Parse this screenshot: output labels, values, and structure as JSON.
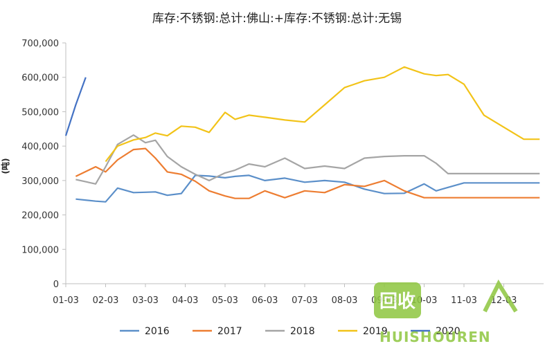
{
  "chart_data": {
    "type": "line",
    "title": "库存:不锈钢:总计:佛山:+库存:不锈钢:总计:无锡",
    "ylabel": "(吨)",
    "xlabel": "",
    "ylim": [
      0,
      700000
    ],
    "yticks": [
      0,
      100000,
      200000,
      300000,
      400000,
      500000,
      600000,
      700000
    ],
    "ytick_labels": [
      "0",
      "100,000",
      "200,000",
      "300,000",
      "400,000",
      "500,000",
      "600,000",
      "700,000"
    ],
    "categories": [
      "01-03",
      "02-03",
      "03-03",
      "04-03",
      "05-03",
      "06-03",
      "07-03",
      "08-03",
      "09-03",
      "10-03",
      "11-03",
      "12-03"
    ],
    "xlim": [
      0,
      12
    ],
    "grid": false,
    "legend_position": "bottom",
    "series": [
      {
        "name": "2016",
        "color": "#5b8fc9",
        "x": [
          0.25,
          0.75,
          1.0,
          1.3,
          1.7,
          2.0,
          2.25,
          2.55,
          2.9,
          3.25,
          3.6,
          4.0,
          4.25,
          4.6,
          5.0,
          5.5,
          6.0,
          6.5,
          7.0,
          7.5,
          8.0,
          8.5,
          9.0,
          9.3,
          9.6,
          10.0,
          10.5,
          11.0,
          11.5,
          11.9
        ],
        "y": [
          246000,
          240000,
          238000,
          278000,
          265000,
          266000,
          267000,
          257000,
          262000,
          315000,
          313000,
          308000,
          312000,
          315000,
          300000,
          307000,
          295000,
          300000,
          295000,
          275000,
          262000,
          263000,
          290000,
          270000,
          280000,
          293000,
          293000,
          293000,
          293000,
          293000
        ]
      },
      {
        "name": "2017",
        "color": "#ed7d31",
        "x": [
          0.25,
          0.75,
          1.0,
          1.3,
          1.7,
          2.0,
          2.25,
          2.55,
          2.9,
          3.25,
          3.6,
          4.0,
          4.25,
          4.6,
          5.0,
          5.5,
          6.0,
          6.5,
          7.0,
          7.5,
          8.0,
          8.5,
          9.0,
          9.3,
          9.6,
          10.0,
          10.5,
          11.0,
          11.5,
          11.9
        ],
        "y": [
          312000,
          340000,
          325000,
          360000,
          390000,
          393000,
          365000,
          325000,
          318000,
          298000,
          270000,
          255000,
          248000,
          248000,
          270000,
          250000,
          270000,
          265000,
          288000,
          283000,
          300000,
          270000,
          250000,
          250000,
          250000,
          250000,
          250000,
          250000,
          250000,
          250000
        ]
      },
      {
        "name": "2018",
        "color": "#a5a5a5",
        "x": [
          0.25,
          0.75,
          1.0,
          1.3,
          1.7,
          2.0,
          2.25,
          2.55,
          2.9,
          3.25,
          3.6,
          4.0,
          4.25,
          4.6,
          5.0,
          5.5,
          6.0,
          6.5,
          7.0,
          7.5,
          8.0,
          8.5,
          9.0,
          9.3,
          9.6,
          10.0,
          10.5,
          11.0,
          11.5,
          11.9
        ],
        "y": [
          303000,
          290000,
          340000,
          405000,
          432000,
          410000,
          417000,
          370000,
          340000,
          318000,
          300000,
          322000,
          330000,
          348000,
          340000,
          365000,
          335000,
          342000,
          335000,
          365000,
          370000,
          372000,
          372000,
          350000,
          320000,
          320000,
          320000,
          320000,
          320000,
          320000
        ]
      },
      {
        "name": "2019",
        "color": "#f2c318",
        "x": [
          1.0,
          1.3,
          1.7,
          2.0,
          2.25,
          2.55,
          2.9,
          3.25,
          3.6,
          4.0,
          4.25,
          4.6,
          5.0,
          5.5,
          6.0,
          6.5,
          7.0,
          7.5,
          8.0,
          8.5,
          9.0,
          9.3,
          9.6,
          10.0,
          10.5,
          11.0,
          11.5,
          11.9
        ],
        "y": [
          355000,
          400000,
          418000,
          425000,
          438000,
          430000,
          458000,
          455000,
          440000,
          498000,
          478000,
          490000,
          484000,
          476000,
          470000,
          520000,
          570000,
          590000,
          600000,
          630000,
          610000,
          605000,
          608000,
          580000,
          490000,
          455000,
          420000,
          420000
        ]
      },
      {
        "name": "2020",
        "color": "#4472c4",
        "x": [
          0.0,
          0.25,
          0.5
        ],
        "y": [
          430000,
          520000,
          600000
        ]
      }
    ]
  },
  "watermark": {
    "text": "HUISHOUREN",
    "glyph": "回收"
  }
}
